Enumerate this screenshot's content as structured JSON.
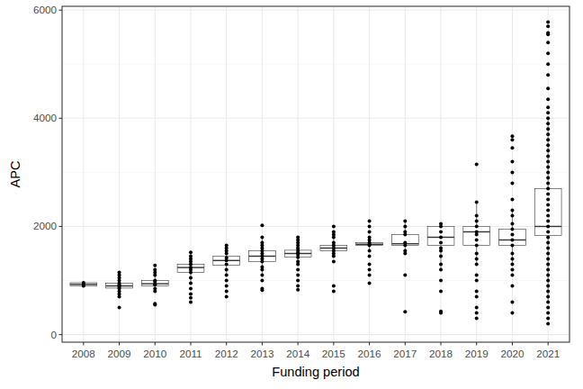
{
  "chart_data": {
    "type": "box",
    "x_label": "Funding period",
    "y_label": "APC",
    "categories": [
      "2008",
      "2009",
      "2010",
      "2011",
      "2012",
      "2013",
      "2014",
      "2015",
      "2016",
      "2017",
      "2018",
      "2019",
      "2020",
      "2021"
    ],
    "boxes": [
      {
        "lower": 900,
        "q1": 900,
        "median": 930,
        "q3": 960,
        "upper": 960
      },
      {
        "lower": 750,
        "q1": 860,
        "median": 900,
        "q3": 950,
        "upper": 1050
      },
      {
        "lower": 800,
        "q1": 900,
        "median": 940,
        "q3": 1000,
        "upper": 1150
      },
      {
        "lower": 950,
        "q1": 1150,
        "median": 1240,
        "q3": 1300,
        "upper": 1520
      },
      {
        "lower": 1100,
        "q1": 1280,
        "median": 1370,
        "q3": 1450,
        "upper": 1650
      },
      {
        "lower": 1100,
        "q1": 1350,
        "median": 1450,
        "q3": 1550,
        "upper": 1800
      },
      {
        "lower": 1300,
        "q1": 1430,
        "median": 1500,
        "q3": 1560,
        "upper": 1750
      },
      {
        "lower": 1450,
        "q1": 1550,
        "median": 1600,
        "q3": 1650,
        "upper": 1800
      },
      {
        "lower": 1550,
        "q1": 1650,
        "median": 1670,
        "q3": 1700,
        "upper": 1750
      },
      {
        "lower": 1500,
        "q1": 1650,
        "median": 1680,
        "q3": 1850,
        "upper": 2100
      },
      {
        "lower": 1200,
        "q1": 1650,
        "median": 1800,
        "q3": 2000,
        "upper": 2050
      },
      {
        "lower": 1300,
        "q1": 1650,
        "median": 1900,
        "q3": 2000,
        "upper": 2450
      },
      {
        "lower": 1300,
        "q1": 1650,
        "median": 1750,
        "q3": 1950,
        "upper": 2300
      },
      {
        "lower": 600,
        "q1": 1830,
        "median": 2000,
        "q3": 2700,
        "upper": 4000
      }
    ],
    "points": [
      [
        900,
        930,
        960
      ],
      [
        500,
        700,
        750,
        800,
        850,
        880,
        900,
        920,
        950,
        1000,
        1050,
        1100,
        1150
      ],
      [
        550,
        570,
        800,
        850,
        920,
        940,
        980,
        1000,
        1100,
        1150,
        1200,
        1280
      ],
      [
        600,
        680,
        750,
        850,
        950,
        1050,
        1150,
        1200,
        1240,
        1300,
        1350,
        1400,
        1450,
        1520
      ],
      [
        700,
        800,
        900,
        1000,
        1100,
        1200,
        1300,
        1370,
        1420,
        1500,
        1550,
        1600,
        1650
      ],
      [
        820,
        850,
        1000,
        1100,
        1200,
        1250,
        1350,
        1400,
        1450,
        1500,
        1550,
        1600,
        1650,
        1700,
        1800,
        2020
      ],
      [
        830,
        900,
        1000,
        1100,
        1200,
        1300,
        1350,
        1430,
        1480,
        1520,
        1560,
        1600,
        1650,
        1700,
        1750,
        1800
      ],
      [
        800,
        900,
        1350,
        1450,
        1500,
        1550,
        1600,
        1650,
        1700,
        1800,
        1850,
        1900,
        2000
      ],
      [
        950,
        1100,
        1200,
        1300,
        1450,
        1550,
        1650,
        1670,
        1700,
        1750,
        1800,
        1900,
        2000,
        2100
      ],
      [
        420,
        1100,
        1500,
        1550,
        1650,
        1700,
        1850,
        1900,
        2000,
        2100
      ],
      [
        400,
        430,
        800,
        1000,
        1200,
        1300,
        1450,
        1550,
        1600,
        1700,
        1800,
        1900,
        2000,
        2050
      ],
      [
        300,
        400,
        500,
        700,
        800,
        1000,
        1100,
        1300,
        1400,
        1500,
        1650,
        1750,
        1850,
        1900,
        2000,
        2100,
        2200,
        2450,
        3150
      ],
      [
        400,
        600,
        900,
        1100,
        1200,
        1300,
        1400,
        1500,
        1650,
        1750,
        1850,
        1950,
        2050,
        2200,
        2300,
        2500,
        2800,
        3000,
        3200,
        3450,
        3600,
        3670
      ],
      [
        200,
        300,
        400,
        500,
        600,
        700,
        800,
        900,
        1000,
        1100,
        1200,
        1300,
        1400,
        1500,
        1600,
        1700,
        1800,
        1900,
        2000,
        2100,
        2200,
        2300,
        2400,
        2500,
        2600,
        2700,
        2800,
        2900,
        3000,
        3100,
        3200,
        3300,
        3400,
        3500,
        3600,
        3700,
        3800,
        3900,
        4000,
        4100,
        4200,
        4350,
        4550,
        4800,
        5000,
        5200,
        5400,
        5550,
        5580,
        5700,
        5780
      ]
    ],
    "ylim": [
      -140,
      6070
    ],
    "yticks": [
      0,
      2000,
      4000,
      6000
    ],
    "grid": true
  }
}
